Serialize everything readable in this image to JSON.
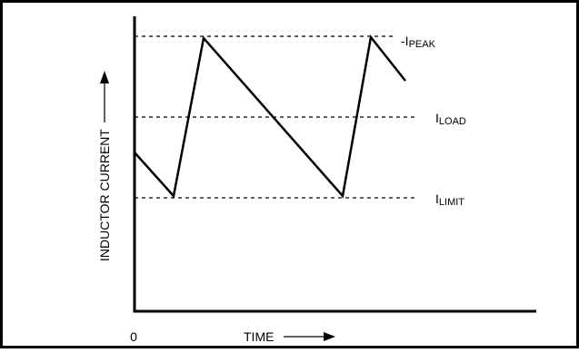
{
  "labels": {
    "origin": "0",
    "x_axis": "TIME",
    "y_axis": "INDUCTOR CURRENT",
    "peak_prefix": "-",
    "peak_main": "I",
    "peak_sub": "PEAK",
    "load_main": "I",
    "load_sub": "LOAD",
    "limit_main": "I",
    "limit_sub": "LIMIT"
  },
  "levels": [
    "I_PEAK",
    "I_LOAD",
    "I_LIMIT"
  ],
  "waveform": {
    "shape": "sawtooth",
    "description_points": [
      "start",
      "valley",
      "peak",
      "valley",
      "peak",
      "end"
    ]
  }
}
